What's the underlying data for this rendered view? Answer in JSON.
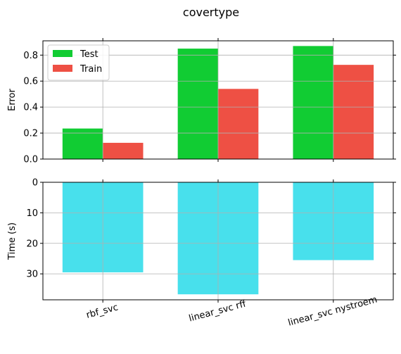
{
  "chart_data": {
    "title": "covertype",
    "categories": [
      "rbf_svc",
      "linear_svc rff",
      "linear_svc nystroem"
    ],
    "panels": [
      {
        "type": "bar",
        "ylabel": "Error",
        "ylim": [
          0,
          0.91
        ],
        "yticks": [
          0.0,
          0.2,
          0.4,
          0.6,
          0.8
        ],
        "ytick_labels": [
          "0.0",
          "0.2",
          "0.4",
          "0.6",
          "0.8"
        ],
        "grid": true,
        "legend": "top-left",
        "series": [
          {
            "name": "Test",
            "color": "#11cc33",
            "values": [
              0.235,
              0.85,
              0.87
            ]
          },
          {
            "name": "Train",
            "color": "#ee5044",
            "values": [
              0.125,
              0.54,
              0.725
            ]
          }
        ]
      },
      {
        "type": "bar",
        "ylabel": "Time (s)",
        "ylim": [
          0,
          38.5
        ],
        "inverted_y": true,
        "yticks": [
          0,
          10,
          20,
          30
        ],
        "ytick_labels": [
          "0",
          "10",
          "20",
          "30"
        ],
        "grid": true,
        "series": [
          {
            "color": "#48e0ec",
            "values": [
              29.5,
              36.7,
              25.5
            ]
          }
        ]
      }
    ]
  }
}
